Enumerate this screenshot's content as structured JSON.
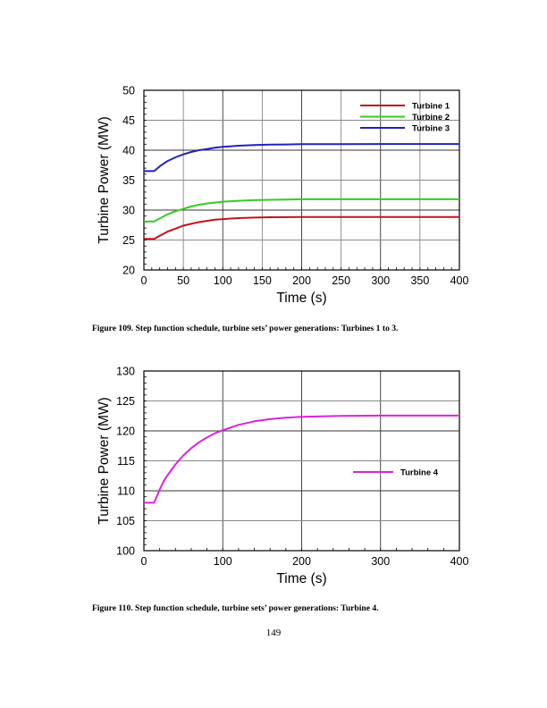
{
  "page": {
    "number": "149"
  },
  "figures": [
    {
      "caption": "Figure 109. Step function schedule, turbine sets’ power generations: Turbines 1 to 3."
    },
    {
      "caption": "Figure 110. Step function schedule, turbine sets’ power generations: Turbine 4."
    }
  ],
  "chart_data": [
    {
      "type": "line",
      "title": "",
      "xlabel": "Time (s)",
      "ylabel": "Turbine Power (MW)",
      "xlim": [
        0,
        400
      ],
      "ylim": [
        20,
        50
      ],
      "xticks": [
        0,
        50,
        100,
        150,
        200,
        250,
        300,
        350,
        400
      ],
      "yticks": [
        20,
        25,
        30,
        35,
        40,
        45,
        50
      ],
      "grid": true,
      "legend_position": "upper right",
      "x": [
        0,
        13,
        20,
        30,
        40,
        50,
        60,
        70,
        80,
        90,
        100,
        120,
        140,
        160,
        180,
        200,
        250,
        300,
        350,
        400
      ],
      "series": [
        {
          "name": "Turbine 1",
          "color": "#c0141c",
          "values": [
            25.2,
            25.2,
            25.7,
            26.4,
            26.9,
            27.4,
            27.7,
            28.0,
            28.2,
            28.4,
            28.5,
            28.65,
            28.75,
            28.8,
            28.82,
            28.85,
            28.85,
            28.85,
            28.85,
            28.85
          ]
        },
        {
          "name": "Turbine 2",
          "color": "#33cc22",
          "values": [
            28.1,
            28.1,
            28.6,
            29.3,
            29.8,
            30.2,
            30.6,
            30.9,
            31.1,
            31.25,
            31.4,
            31.55,
            31.65,
            31.72,
            31.76,
            31.8,
            31.8,
            31.8,
            31.8,
            31.8
          ]
        },
        {
          "name": "Turbine 3",
          "color": "#2222bb",
          "values": [
            36.5,
            36.5,
            37.3,
            38.2,
            38.8,
            39.3,
            39.7,
            40.0,
            40.2,
            40.4,
            40.55,
            40.75,
            40.85,
            40.92,
            40.96,
            41.0,
            41.02,
            41.03,
            41.03,
            41.03
          ]
        }
      ]
    },
    {
      "type": "line",
      "title": "",
      "xlabel": "Time (s)",
      "ylabel": "Turbine Power (MW)",
      "xlim": [
        0,
        400
      ],
      "ylim": [
        100,
        130
      ],
      "xticks": [
        0,
        100,
        200,
        300,
        400
      ],
      "yticks": [
        100,
        105,
        110,
        115,
        120,
        125,
        130
      ],
      "grid": true,
      "legend_position": "center right",
      "x": [
        0,
        13,
        20,
        25,
        30,
        40,
        50,
        60,
        70,
        80,
        90,
        100,
        120,
        140,
        160,
        180,
        200,
        250,
        300,
        350,
        400
      ],
      "series": [
        {
          "name": "Turbine 4",
          "color": "#dd22dd",
          "values": [
            108.0,
            108.0,
            110.2,
            111.6,
            112.6,
            114.4,
            115.9,
            117.1,
            118.1,
            118.9,
            119.6,
            120.1,
            121.0,
            121.6,
            121.95,
            122.2,
            122.35,
            122.5,
            122.55,
            122.55,
            122.55
          ]
        }
      ]
    }
  ]
}
